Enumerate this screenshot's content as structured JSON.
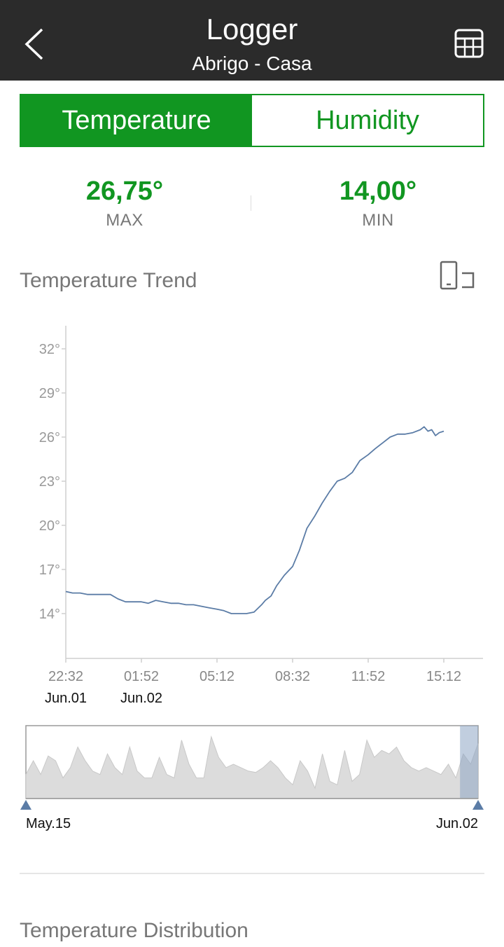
{
  "header": {
    "title": "Logger",
    "subtitle": "Abrigo - Casa",
    "back_icon": "chevron-left-icon",
    "table_icon": "table-grid-icon"
  },
  "tabs": [
    {
      "label": "Temperature",
      "active": true
    },
    {
      "label": "Humidity",
      "active": false
    }
  ],
  "stats": {
    "max": {
      "value": "26,75°",
      "label": "MAX"
    },
    "min": {
      "value": "14,00°",
      "label": "MIN"
    }
  },
  "trend": {
    "title": "Temperature Trend",
    "orientation_icon": "rotate-screen-icon"
  },
  "chart_data": {
    "type": "line",
    "series": [
      {
        "x": [
          "22:32",
          "22:50",
          "23:10",
          "23:30",
          "23:50",
          "00:10",
          "00:30",
          "00:50",
          "01:10",
          "01:30",
          "01:52",
          "02:10",
          "02:30",
          "02:50",
          "03:10",
          "03:30",
          "03:50",
          "04:10",
          "04:30",
          "04:50",
          "05:12",
          "05:30",
          "05:50",
          "06:10",
          "06:30",
          "06:50",
          "07:10",
          "07:20",
          "07:35",
          "07:50",
          "08:10",
          "08:32",
          "08:50",
          "09:10",
          "09:30",
          "09:50",
          "10:10",
          "10:30",
          "10:50",
          "11:10",
          "11:30",
          "11:52",
          "12:10",
          "12:30",
          "12:50",
          "13:10",
          "13:30",
          "13:50",
          "14:10",
          "14:20",
          "14:30",
          "14:40",
          "14:50",
          "15:00",
          "15:12"
        ],
        "values": [
          15.5,
          15.4,
          15.4,
          15.3,
          15.3,
          15.3,
          15.3,
          15.0,
          14.8,
          14.8,
          14.8,
          14.7,
          14.9,
          14.8,
          14.7,
          14.7,
          14.6,
          14.6,
          14.5,
          14.4,
          14.3,
          14.2,
          14.0,
          14.0,
          14.0,
          14.1,
          14.6,
          14.9,
          15.2,
          15.9,
          16.6,
          17.2,
          18.3,
          19.8,
          20.6,
          21.5,
          22.3,
          23.0,
          23.2,
          23.6,
          24.4,
          24.8,
          25.2,
          25.6,
          26.0,
          26.2,
          26.2,
          26.3,
          26.5,
          26.7,
          26.4,
          26.5,
          26.1,
          26.3,
          26.4
        ]
      }
    ],
    "yticks": [
      "32°",
      "29°",
      "26°",
      "23°",
      "20°",
      "17°",
      "14°"
    ],
    "ylim": [
      11.8,
      33.5
    ],
    "xticks": [
      {
        "time": "22:32",
        "date": "Jun.01"
      },
      {
        "time": "01:52",
        "date": "Jun.02"
      },
      {
        "time": "05:12",
        "date": ""
      },
      {
        "time": "08:32",
        "date": ""
      },
      {
        "time": "11:52",
        "date": ""
      },
      {
        "time": "15:12",
        "date": ""
      }
    ],
    "line_color": "#5b7ca6"
  },
  "range": {
    "start_label": "May.15",
    "end_label": "Jun.02",
    "selected_fraction": [
      0.96,
      1.0
    ],
    "overview_values": [
      0.35,
      0.55,
      0.35,
      0.62,
      0.55,
      0.3,
      0.45,
      0.75,
      0.55,
      0.4,
      0.35,
      0.65,
      0.45,
      0.35,
      0.75,
      0.4,
      0.3,
      0.3,
      0.6,
      0.35,
      0.3,
      0.85,
      0.5,
      0.3,
      0.3,
      0.9,
      0.6,
      0.45,
      0.5,
      0.45,
      0.4,
      0.38,
      0.45,
      0.55,
      0.45,
      0.3,
      0.2,
      0.55,
      0.4,
      0.15,
      0.65,
      0.25,
      0.2,
      0.7,
      0.25,
      0.35,
      0.85,
      0.6,
      0.7,
      0.65,
      0.75,
      0.55,
      0.45,
      0.4,
      0.45,
      0.4,
      0.35,
      0.5,
      0.3,
      0.65,
      0.5,
      0.8
    ]
  },
  "distribution": {
    "title": "Temperature Distribution"
  }
}
